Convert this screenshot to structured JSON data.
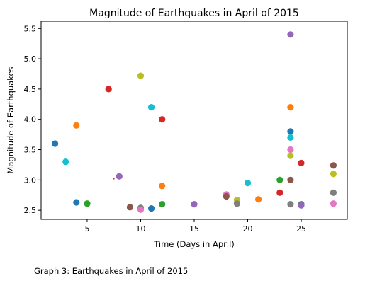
{
  "chart_data": {
    "type": "scatter",
    "title": "Magnitude of Earthquakes in April of 2015",
    "xlabel": "Time (Days in April)",
    "ylabel": "Magnitude of Earthquakes",
    "xlim": [
      0.7,
      29.3
    ],
    "ylim": [
      2.35,
      5.62
    ],
    "xticks": [
      5,
      10,
      15,
      20,
      25
    ],
    "yticks": [
      2.5,
      3.0,
      3.5,
      4.0,
      4.5,
      5.0,
      5.5
    ],
    "grid": false,
    "points": [
      {
        "x": 2,
        "y": 3.6,
        "color": "#1f77b4"
      },
      {
        "x": 3,
        "y": 3.3,
        "color": "#17becf"
      },
      {
        "x": 4,
        "y": 3.9,
        "color": "#ff7f0e"
      },
      {
        "x": 4,
        "y": 2.63,
        "color": "#1f77b4"
      },
      {
        "x": 5,
        "y": 2.61,
        "color": "#2ca02c"
      },
      {
        "x": 7,
        "y": 4.5,
        "color": "#d62728"
      },
      {
        "x": 8,
        "y": 3.06,
        "color": "#9467bd"
      },
      {
        "x": 9,
        "y": 2.55,
        "color": "#8c564b"
      },
      {
        "x": 10,
        "y": 4.72,
        "color": "#bcbd22"
      },
      {
        "x": 10,
        "y": 2.54,
        "color": "#7f7f7f"
      },
      {
        "x": 10,
        "y": 2.51,
        "color": "#e377c2"
      },
      {
        "x": 11,
        "y": 4.2,
        "color": "#17becf"
      },
      {
        "x": 11,
        "y": 2.53,
        "color": "#1f77b4"
      },
      {
        "x": 12,
        "y": 4.0,
        "color": "#d62728"
      },
      {
        "x": 12,
        "y": 2.9,
        "color": "#ff7f0e"
      },
      {
        "x": 12,
        "y": 2.6,
        "color": "#2ca02c"
      },
      {
        "x": 15,
        "y": 2.6,
        "color": "#9467bd"
      },
      {
        "x": 18,
        "y": 2.76,
        "color": "#e377c2"
      },
      {
        "x": 18,
        "y": 2.73,
        "color": "#8c564b"
      },
      {
        "x": 19,
        "y": 2.67,
        "color": "#bcbd22"
      },
      {
        "x": 19,
        "y": 2.61,
        "color": "#7f7f7f"
      },
      {
        "x": 20,
        "y": 2.95,
        "color": "#17becf"
      },
      {
        "x": 21,
        "y": 2.68,
        "color": "#ff7f0e"
      },
      {
        "x": 23,
        "y": 3.0,
        "color": "#2ca02c"
      },
      {
        "x": 23,
        "y": 2.79,
        "color": "#d62728"
      },
      {
        "x": 24,
        "y": 5.4,
        "color": "#9467bd"
      },
      {
        "x": 24,
        "y": 4.2,
        "color": "#ff7f0e"
      },
      {
        "x": 24,
        "y": 3.8,
        "color": "#1f77b4"
      },
      {
        "x": 24,
        "y": 3.7,
        "color": "#17becf"
      },
      {
        "x": 24,
        "y": 3.5,
        "color": "#e377c2"
      },
      {
        "x": 24,
        "y": 3.4,
        "color": "#bcbd22"
      },
      {
        "x": 24,
        "y": 3.0,
        "color": "#8c564b"
      },
      {
        "x": 24,
        "y": 2.6,
        "color": "#7f7f7f"
      },
      {
        "x": 25,
        "y": 3.28,
        "color": "#d62728"
      },
      {
        "x": 25,
        "y": 2.6,
        "color": "#2ca02c"
      },
      {
        "x": 25,
        "y": 2.58,
        "color": "#9467bd"
      },
      {
        "x": 28,
        "y": 3.24,
        "color": "#8c564b"
      },
      {
        "x": 28,
        "y": 3.1,
        "color": "#bcbd22"
      },
      {
        "x": 28,
        "y": 2.79,
        "color": "#7f7f7f"
      },
      {
        "x": 28,
        "y": 2.61,
        "color": "#e377c2"
      }
    ],
    "annotations": [
      {
        "x": 7.5,
        "y": 3.02,
        "color": "#d62728",
        "kind": "small-mark"
      }
    ]
  },
  "caption": "Graph 3: Earthquakes in April of 2015"
}
